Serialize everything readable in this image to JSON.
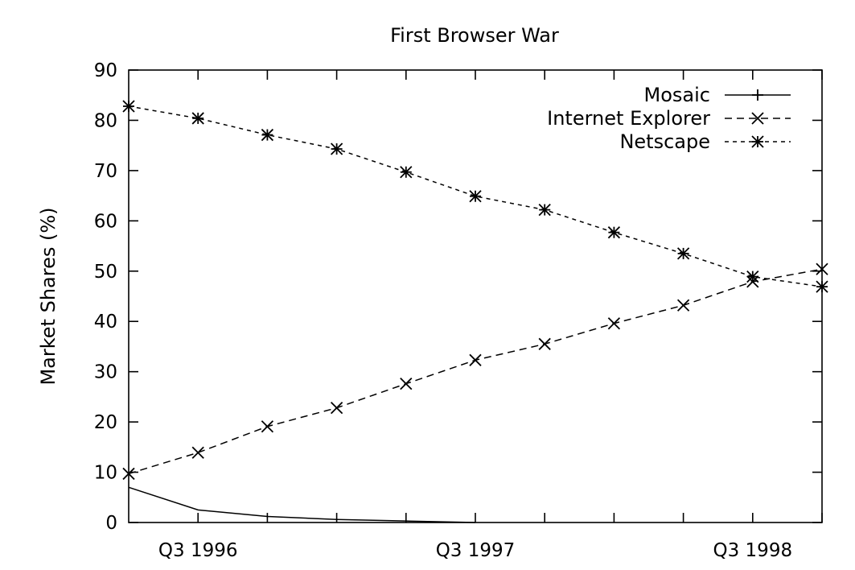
{
  "chart_data": {
    "type": "line",
    "title": "First Browser War",
    "xlabel": "",
    "ylabel": "Market Shares (%)",
    "ylim": [
      0,
      90
    ],
    "yticks": [
      0,
      10,
      20,
      30,
      40,
      50,
      60,
      70,
      80,
      90
    ],
    "x_unit": "quarter",
    "xlim": [
      "Q2 1996",
      "Q4 1998"
    ],
    "x_minor_ticks": [
      "Q3 1996",
      "Q4 1996",
      "Q1 1997",
      "Q2 1997",
      "Q3 1997",
      "Q4 1997",
      "Q1 1998",
      "Q2 1998",
      "Q3 1998",
      "Q4 1998"
    ],
    "x_major_ticks": [
      "Q3 1996",
      "Q3 1997",
      "Q3 1998"
    ],
    "x": [
      "Q2 1996",
      "Q3 1996",
      "Q4 1996",
      "Q1 1997",
      "Q2 1997",
      "Q3 1997",
      "Q4 1997",
      "Q1 1998",
      "Q2 1998",
      "Q3 1998",
      "Q4 1998"
    ],
    "series": [
      {
        "name": "Mosaic",
        "marker": "plus",
        "dash": "solid",
        "values": [
          7,
          2.5,
          1.2,
          0.6,
          0.3,
          0,
          null,
          null,
          null,
          null,
          null
        ]
      },
      {
        "name": "Internet Explorer",
        "marker": "x",
        "dash": "dashed",
        "values": [
          9.7,
          13.9,
          19.1,
          22.8,
          27.6,
          32.3,
          35.5,
          39.6,
          43.2,
          47.9,
          50.4
        ]
      },
      {
        "name": "Netscape",
        "marker": "star",
        "dash": "dotted",
        "values": [
          82.8,
          80.4,
          77.1,
          74.3,
          69.7,
          64.9,
          62.2,
          57.7,
          53.5,
          48.9,
          46.9
        ]
      }
    ],
    "legend_position": "top-right",
    "grid": false
  }
}
